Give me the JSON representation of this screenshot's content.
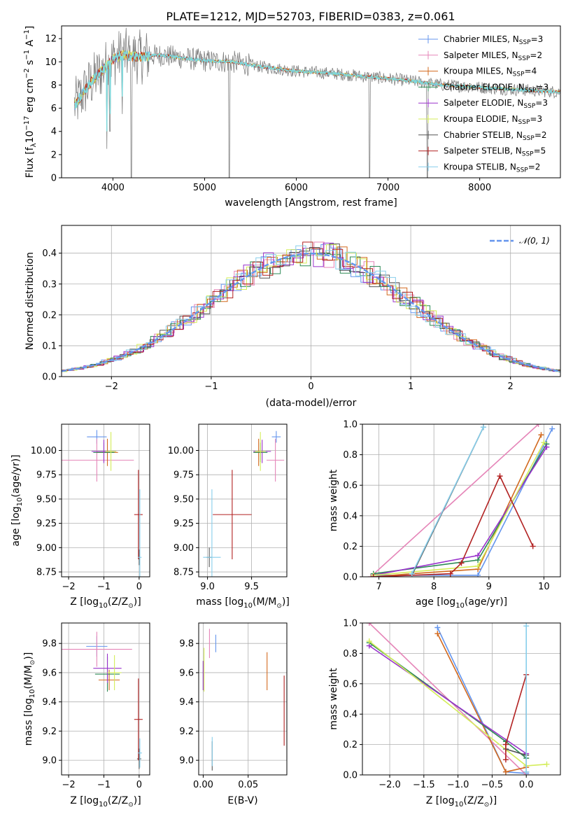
{
  "figure": {
    "title": "PLATE=1212, MJD=52703, FIBERID=0383, z=0.061"
  },
  "legend_entries": [
    {
      "key": "chabrier_miles",
      "label": "Chabrier MILES, N",
      "sub": "SSP",
      "suffix": "=3",
      "color": "#6495ed"
    },
    {
      "key": "salpeter_miles",
      "label": "Salpeter MILES, N",
      "sub": "SSP",
      "suffix": "=2",
      "color": "#e585b8"
    },
    {
      "key": "kroupa_miles",
      "label": "Kroupa MILES, N",
      "sub": "SSP",
      "suffix": "=4",
      "color": "#d2691e"
    },
    {
      "key": "chabrier_elodie",
      "label": "Chabrier ELODIE, N",
      "sub": "SSP",
      "suffix": "=3",
      "color": "#2e8b57"
    },
    {
      "key": "salpeter_elodie",
      "label": "Salpeter ELODIE, N",
      "sub": "SSP",
      "suffix": "=3",
      "color": "#9932cc"
    },
    {
      "key": "kroupa_elodie",
      "label": "Kroupa ELODIE, N",
      "sub": "SSP",
      "suffix": "=3",
      "color": "#d4ed5a"
    },
    {
      "key": "chabrier_stelib",
      "label": "Chabrier STELIB, N",
      "sub": "SSP",
      "suffix": "=2",
      "color": "#555555"
    },
    {
      "key": "salpeter_stelib",
      "label": "Salpeter STELIB, N",
      "sub": "SSP",
      "suffix": "=5",
      "color": "#b22222"
    },
    {
      "key": "kroupa_stelib",
      "label": "Kroupa STELIB, N",
      "sub": "SSP",
      "suffix": "=2",
      "color": "#87ceeb"
    }
  ],
  "chart_data": [
    {
      "id": "spectrum",
      "type": "line",
      "xlabel": "wavelength [Angstrom, rest frame]",
      "ylabel": "Flux [f",
      "ylabel_sub": "λ",
      "ylabel_mid": "10",
      "ylabel_sup1": "−17",
      "ylabel_mid2": " erg cm",
      "ylabel_sup2": "−2",
      "ylabel_mid3": " s",
      "ylabel_sup3": "−1",
      "ylabel_mid4": " A",
      "ylabel_sup4": "−1",
      "ylabel_end": "]",
      "xlim": [
        3440,
        8880
      ],
      "ylim": [
        0,
        13.1
      ],
      "xticks": [
        4000,
        5000,
        6000,
        7000,
        8000
      ],
      "yticks": [
        0,
        2,
        4,
        6,
        8,
        10,
        12
      ],
      "data_color": "#808080",
      "model_color": "#7fd8dc",
      "continuum": [
        [
          3580,
          6.2
        ],
        [
          3700,
          7.6
        ],
        [
          3800,
          8.6
        ],
        [
          3900,
          9.4
        ],
        [
          4000,
          10.2
        ],
        [
          4100,
          10.6
        ],
        [
          4300,
          10.4
        ],
        [
          4500,
          10.6
        ],
        [
          4700,
          10.4
        ],
        [
          5000,
          10.1
        ],
        [
          5300,
          10.0
        ],
        [
          5600,
          9.6
        ],
        [
          6000,
          9.2
        ],
        [
          6400,
          9.0
        ],
        [
          6800,
          8.7
        ],
        [
          7200,
          8.4
        ],
        [
          7600,
          8.0
        ],
        [
          8000,
          7.8
        ],
        [
          8400,
          7.6
        ],
        [
          8880,
          7.4
        ]
      ],
      "dips": [
        [
          3933,
          2.5
        ],
        [
          3968,
          4.0
        ],
        [
          4102,
          5.5
        ],
        [
          4200,
          0
        ],
        [
          5270,
          0
        ],
        [
          6800,
          0
        ],
        [
          7430,
          0
        ]
      ]
    },
    {
      "id": "residuals",
      "type": "line",
      "xlabel": "(data-model)/error",
      "ylabel": "Normed distribution",
      "legend": "𝒩(0, 1)",
      "xlim": [
        -2.5,
        2.5
      ],
      "ylim": [
        0,
        0.49
      ],
      "xticks": [
        -2,
        -1,
        0,
        1,
        2
      ],
      "xtick_labels": [
        "−2",
        "−1",
        "0",
        "1",
        "2"
      ],
      "yticks": [
        0.0,
        0.1,
        0.2,
        0.3,
        0.4
      ],
      "ytick_labels": [
        "0.0",
        "0.1",
        "0.2",
        "0.3",
        "0.4"
      ],
      "gauss_color": "#6495ed"
    },
    {
      "id": "age_vs_Z",
      "type": "scatter",
      "xlabel": "Z [log",
      "xlabel_sub": "10",
      "xlabel_end": "(Z/Z",
      "xlabel_tail": ")]",
      "ylabel": "age  [log",
      "ylabel_sub": "10",
      "ylabel_end": "(age/yr)]",
      "xlim": [
        -2.2,
        0.3
      ],
      "ylim": [
        8.7,
        10.27
      ],
      "xticks": [
        -2,
        -1,
        0
      ],
      "xtick_labels": [
        "−2",
        "−1",
        "0"
      ],
      "yticks": [
        8.75,
        9.0,
        9.25,
        9.5,
        9.75,
        10.0
      ],
      "ytick_labels": [
        "8.75",
        "9.00",
        "9.25",
        "9.50",
        "9.75",
        "10.00"
      ],
      "points": [
        {
          "s": "chabrier_miles",
          "x": -1.2,
          "y": 10.14,
          "xe": 0.28,
          "ye": 0.07
        },
        {
          "s": "salpeter_miles",
          "x": -1.2,
          "y": 9.9,
          "xe": 1.05,
          "ye": 0.22
        },
        {
          "s": "kroupa_miles",
          "x": -0.9,
          "y": 9.98,
          "xe": 0.3,
          "ye": 0.14
        },
        {
          "s": "chabrier_elodie",
          "x": -1.0,
          "y": 9.98,
          "xe": 0.3,
          "ye": 0.1
        },
        {
          "s": "salpeter_elodie",
          "x": -1.0,
          "y": 9.99,
          "xe": 0.35,
          "ye": 0.12
        },
        {
          "s": "kroupa_elodie",
          "x": -0.8,
          "y": 9.99,
          "xe": 0.15,
          "ye": 0.2
        },
        {
          "s": "chabrier_stelib",
          "x": 0.0,
          "y": 8.9,
          "xe": 0.02,
          "ye": 0.08
        },
        {
          "s": "salpeter_stelib",
          "x": -0.02,
          "y": 9.34,
          "xe": 0.12,
          "ye": 0.46
        },
        {
          "s": "kroupa_stelib",
          "x": 0.02,
          "y": 8.9,
          "xe": 0.05,
          "ye": 0.7
        }
      ]
    },
    {
      "id": "age_vs_mass",
      "type": "scatter",
      "xlabel": "mass [log",
      "xlabel_sub": "10",
      "xlabel_end": "(M/M",
      "xlabel_tail": ")]",
      "xlim": [
        8.9,
        9.9
      ],
      "ylim": [
        8.7,
        10.27
      ],
      "xticks": [
        9.0,
        9.5
      ],
      "xtick_labels": [
        "9.0",
        "9.5"
      ],
      "yticks": [
        8.75,
        9.0,
        9.25,
        9.5,
        9.75,
        10.0
      ],
      "ytick_labels": [
        "8.75",
        "9.00",
        "9.25",
        "9.50",
        "9.75",
        "10.00"
      ],
      "points": [
        {
          "s": "chabrier_miles",
          "x": 9.78,
          "y": 10.14,
          "xe": 0.05,
          "ye": 0.06
        },
        {
          "s": "salpeter_miles",
          "x": 9.77,
          "y": 9.9,
          "xe": 0.1,
          "ye": 0.22
        },
        {
          "s": "kroupa_miles",
          "x": 9.58,
          "y": 9.98,
          "xe": 0.05,
          "ye": 0.14
        },
        {
          "s": "chabrier_elodie",
          "x": 9.6,
          "y": 9.98,
          "xe": 0.08,
          "ye": 0.1
        },
        {
          "s": "salpeter_elodie",
          "x": 9.62,
          "y": 9.99,
          "xe": 0.1,
          "ye": 0.12
        },
        {
          "s": "kroupa_elodie",
          "x": 9.6,
          "y": 9.99,
          "xe": 0.06,
          "ye": 0.2
        },
        {
          "s": "chabrier_stelib",
          "x": 9.02,
          "y": 8.9,
          "xe": 0.03,
          "ye": 0.1
        },
        {
          "s": "salpeter_stelib",
          "x": 9.28,
          "y": 9.34,
          "xe": 0.22,
          "ye": 0.46
        },
        {
          "s": "kroupa_stelib",
          "x": 9.05,
          "y": 8.9,
          "xe": 0.1,
          "ye": 0.7
        }
      ]
    },
    {
      "id": "weight_vs_age",
      "type": "line",
      "xlabel": "age  [log",
      "xlabel_sub": "10",
      "xlabel_end": "(age/yr)]",
      "ylabel": "mass weight",
      "xlim": [
        6.7,
        10.3
      ],
      "ylim": [
        0,
        1.0
      ],
      "xticks": [
        7,
        8,
        9,
        10
      ],
      "xtick_labels": [
        "7",
        "8",
        "9",
        "10"
      ],
      "yticks": [
        0.0,
        0.2,
        0.4,
        0.6,
        0.8,
        1.0
      ],
      "ytick_labels": [
        "0.0",
        "0.2",
        "0.4",
        "0.6",
        "0.8",
        "1.0"
      ],
      "series": [
        {
          "s": "chabrier_miles",
          "x": [
            6.9,
            8.8,
            10.15
          ],
          "y": [
            0.01,
            0.01,
            0.97
          ]
        },
        {
          "s": "salpeter_miles",
          "x": [
            6.85,
            9.9
          ],
          "y": [
            0.0,
            1.0
          ]
        },
        {
          "s": "kroupa_miles",
          "x": [
            6.9,
            7.6,
            8.8,
            9.95
          ],
          "y": [
            0.0,
            0.02,
            0.05,
            0.93
          ]
        },
        {
          "s": "chabrier_elodie",
          "x": [
            6.9,
            8.8,
            10.05
          ],
          "y": [
            0.02,
            0.11,
            0.87
          ]
        },
        {
          "s": "salpeter_elodie",
          "x": [
            6.9,
            8.8,
            10.05
          ],
          "y": [
            0.01,
            0.14,
            0.85
          ]
        },
        {
          "s": "kroupa_elodie",
          "x": [
            6.9,
            8.8,
            10.0
          ],
          "y": [
            0.01,
            0.07,
            0.88
          ]
        },
        {
          "s": "chabrier_stelib",
          "x": [
            7.6,
            8.9
          ],
          "y": [
            0.01,
            0.98
          ]
        },
        {
          "s": "salpeter_stelib",
          "x": [
            6.9,
            8.3,
            8.5,
            9.2,
            9.8
          ],
          "y": [
            0.0,
            0.02,
            0.09,
            0.66,
            0.2
          ]
        },
        {
          "s": "kroupa_stelib",
          "x": [
            7.6,
            8.9
          ],
          "y": [
            0.02,
            0.98
          ]
        }
      ]
    },
    {
      "id": "mass_vs_Z",
      "type": "scatter",
      "xlabel": "Z [log",
      "xlabel_sub": "10",
      "xlabel_end": "(Z/Z",
      "xlabel_tail": ")]",
      "ylabel": "mass [log",
      "ylabel_sub": "10",
      "ylabel_end": "(M/M",
      "ylabel_tail": ")]",
      "xlim": [
        -2.2,
        0.3
      ],
      "ylim": [
        8.9,
        9.94
      ],
      "xticks": [
        -2,
        -1,
        0
      ],
      "xtick_labels": [
        "−2",
        "−1",
        "0"
      ],
      "yticks": [
        9.0,
        9.2,
        9.4,
        9.6,
        9.8
      ],
      "ytick_labels": [
        "9.0",
        "9.2",
        "9.4",
        "9.6",
        "9.8"
      ],
      "points": [
        {
          "s": "chabrier_miles",
          "x": -1.2,
          "y": 9.78,
          "xe": 0.3,
          "ye": 0.07
        },
        {
          "s": "salpeter_miles",
          "x": -1.2,
          "y": 9.76,
          "xe": 1.0,
          "ye": 0.12
        },
        {
          "s": "kroupa_miles",
          "x": -0.85,
          "y": 9.55,
          "xe": 0.3,
          "ye": 0.07
        },
        {
          "s": "chabrier_elodie",
          "x": -0.9,
          "y": 9.59,
          "xe": 0.35,
          "ye": 0.12
        },
        {
          "s": "salpeter_elodie",
          "x": -0.9,
          "y": 9.63,
          "xe": 0.4,
          "ye": 0.1
        },
        {
          "s": "kroupa_elodie",
          "x": -0.7,
          "y": 9.6,
          "xe": 0.2,
          "ye": 0.12
        },
        {
          "s": "chabrier_stelib",
          "x": 0.0,
          "y": 9.01,
          "xe": 0.06,
          "ye": 0.07
        },
        {
          "s": "salpeter_stelib",
          "x": -0.02,
          "y": 9.28,
          "xe": 0.12,
          "ye": 0.28
        },
        {
          "s": "kroupa_stelib",
          "x": 0.02,
          "y": 9.05,
          "xe": 0.06,
          "ye": 0.1
        }
      ]
    },
    {
      "id": "mass_vs_ebv",
      "type": "scatter",
      "xlabel": "E(B-V)",
      "xlim": [
        -0.005,
        0.093
      ],
      "ylim": [
        8.9,
        9.94
      ],
      "xticks": [
        0.0,
        0.05
      ],
      "xtick_labels": [
        "0.00",
        "0.05"
      ],
      "yticks": [
        9.0,
        9.2,
        9.4,
        9.6,
        9.8
      ],
      "ytick_labels": [
        "9.0",
        "9.2",
        "9.4",
        "9.6",
        "9.8"
      ],
      "points": [
        {
          "s": "chabrier_miles",
          "x": 0.014,
          "y": 9.8,
          "xe": 0,
          "ye": 0.06
        },
        {
          "s": "salpeter_miles",
          "x": 0.007,
          "y": 9.8,
          "xe": 0,
          "ye": 0.1
        },
        {
          "s": "kroupa_miles",
          "x": 0.071,
          "y": 9.61,
          "xe": 0,
          "ye": 0.13
        },
        {
          "s": "chabrier_elodie",
          "x": 0.0,
          "y": 9.58,
          "xe": 0,
          "ye": 0.1
        },
        {
          "s": "salpeter_elodie",
          "x": 0.0,
          "y": 9.58,
          "xe": 0,
          "ye": 0.1
        },
        {
          "s": "kroupa_elodie",
          "x": 0.001,
          "y": 9.62,
          "xe": 0,
          "ye": 0.15
        },
        {
          "s": "chabrier_stelib",
          "x": 0.01,
          "y": 9.03,
          "xe": 0,
          "ye": 0.1
        },
        {
          "s": "salpeter_stelib",
          "x": 0.09,
          "y": 9.34,
          "xe": 0,
          "ye": 0.24
        },
        {
          "s": "kroupa_stelib",
          "x": 0.01,
          "y": 9.06,
          "xe": 0,
          "ye": 0.1
        }
      ]
    },
    {
      "id": "weight_vs_Z",
      "type": "line",
      "xlabel": "Z [log",
      "xlabel_sub": "10",
      "xlabel_end": "(Z/Z",
      "xlabel_tail": ")]",
      "ylabel": "mass weight",
      "xlim": [
        -2.4,
        0.5
      ],
      "ylim": [
        0,
        1.0
      ],
      "xticks": [
        -2.0,
        -1.5,
        -1.0,
        -0.5,
        0.0
      ],
      "xtick_labels": [
        "−2.0",
        "−1.5",
        "−1.0",
        "−0.5",
        "0.0"
      ],
      "yticks": [
        0.0,
        0.2,
        0.4,
        0.6,
        0.8,
        1.0
      ],
      "ytick_labels": [
        "0.0",
        "0.2",
        "0.4",
        "0.6",
        "0.8",
        "1.0"
      ],
      "series": [
        {
          "s": "chabrier_miles",
          "x": [
            -1.3,
            -0.3,
            0.0
          ],
          "y": [
            0.97,
            0.02,
            0.01
          ]
        },
        {
          "s": "salpeter_miles",
          "x": [
            -2.3,
            0.0
          ],
          "y": [
            1.0,
            0.0
          ]
        },
        {
          "s": "kroupa_miles",
          "x": [
            -1.3,
            -0.3,
            0.0
          ],
          "y": [
            0.93,
            0.02,
            0.05
          ]
        },
        {
          "s": "chabrier_elodie",
          "x": [
            -2.3,
            -0.3,
            0.0
          ],
          "y": [
            0.87,
            0.22,
            0.11
          ]
        },
        {
          "s": "salpeter_elodie",
          "x": [
            -2.3,
            0.0
          ],
          "y": [
            0.85,
            0.14
          ]
        },
        {
          "s": "kroupa_elodie",
          "x": [
            -2.3,
            0.0,
            0.3
          ],
          "y": [
            0.88,
            0.06,
            0.07
          ]
        },
        {
          "s": "chabrier_stelib",
          "x": [
            -0.3,
            0.0
          ],
          "y": [
            0.17,
            0.13
          ]
        },
        {
          "s": "salpeter_stelib",
          "x": [
            -0.3,
            -0.3,
            0.0,
            0.0
          ],
          "y": [
            0.1,
            0.2,
            0.66,
            0.02
          ]
        },
        {
          "s": "kroupa_stelib",
          "x": [
            0.0,
            0.0
          ],
          "y": [
            0.02,
            0.98
          ]
        }
      ]
    }
  ]
}
